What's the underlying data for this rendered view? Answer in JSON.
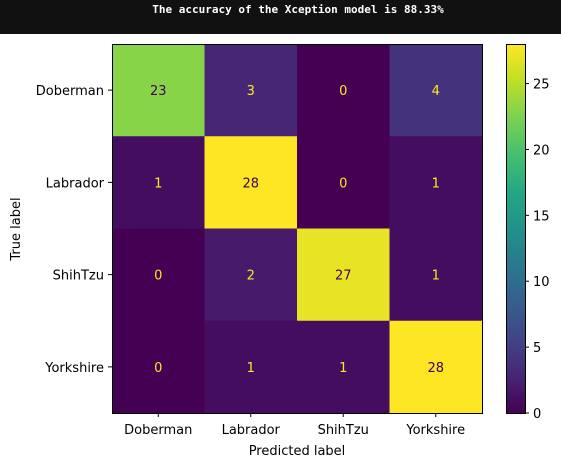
{
  "notebook_output": {
    "message": "The accuracy of the Xception model is 88.33%"
  },
  "chart_data": {
    "type": "heatmap",
    "title": "",
    "xlabel": "Predicted label",
    "ylabel": "True label",
    "x_categories": [
      "Doberman",
      "Labrador",
      "ShihTzu",
      "Yorkshire"
    ],
    "y_categories": [
      "Doberman",
      "Labrador",
      "ShihTzu",
      "Yorkshire"
    ],
    "values": [
      [
        23,
        3,
        0,
        4
      ],
      [
        1,
        28,
        0,
        1
      ],
      [
        0,
        2,
        27,
        1
      ],
      [
        0,
        1,
        1,
        28
      ]
    ],
    "colormap": "viridis",
    "vmin": 0,
    "vmax": 28,
    "colorbar_ticks": [
      0,
      5,
      10,
      15,
      20,
      25
    ],
    "colorbar_tick_labels": [
      "0",
      "5",
      "10",
      "15",
      "20",
      "25"
    ],
    "text_color_dark_cells": "#fde725",
    "text_color_light_cells": "#440154",
    "grid": false
  }
}
